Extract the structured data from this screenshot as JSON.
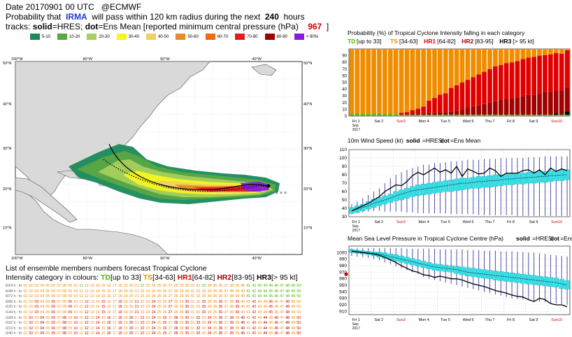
{
  "header": {
    "line1_date": "Date 20170901 00 UTC",
    "line1_org": "@ECMWF",
    "line2_pre": "Probability that",
    "storm": "IRMA",
    "line2_mid": "will pass within 120 km radius during the next",
    "hours": "240",
    "line2_post": "hours",
    "line3_pre": "tracks:",
    "solid": "solid",
    "line3_a": "=HRES;",
    "dot": "dot",
    "line3_b": "=Ens Mean [reported minimum central pressure (hPa)",
    "pressure": "967",
    "line3_end": "]"
  },
  "prob_legend": [
    {
      "label": "5-10",
      "color": "#1a8a5a"
    },
    {
      "label": "10-20",
      "color": "#5aa845"
    },
    {
      "label": "20-30",
      "color": "#a6cf5c"
    },
    {
      "label": "30-40",
      "color": "#f5f51f"
    },
    {
      "label": "40-50",
      "color": "#f0d060"
    },
    {
      "label": "50-60",
      "color": "#e88b2a"
    },
    {
      "label": "60-70",
      "color": "#f06a10"
    },
    {
      "label": "70-80",
      "color": "#e41a1c"
    },
    {
      "label": "80-90",
      "color": "#a00000"
    },
    {
      "label": "> 90%",
      "color": "#8a1ae0"
    }
  ],
  "map": {
    "top_lon_labels": [
      "100°W",
      "80°W",
      "60°W",
      "40°W"
    ],
    "bottom_lon_labels": [
      "100°W",
      "80°W",
      "60°W",
      "40°W"
    ],
    "lat_labels_left": [
      "50°N",
      "40°N",
      "30°N",
      "20°N",
      "10°N"
    ],
    "lat_labels_right": [
      "50°N",
      "40°N",
      "30°N",
      "20°N",
      "10°N"
    ]
  },
  "members": {
    "title": "List of ensemble members numbers forecast Tropical Cyclone",
    "intensity_label": "Intensity category in colours:",
    "categories": [
      {
        "code": "TD",
        "range": "[up to 33]",
        "color": "#49b800"
      },
      {
        "code": "TS",
        "range": "[34-63]",
        "color": "#f08c00"
      },
      {
        "code": "HR1",
        "range": "[64-82]",
        "color": "#e00000"
      },
      {
        "code": "HR2",
        "range": "[83-95]",
        "color": "#a00000"
      },
      {
        "code": "HR3",
        "range": "[> 95 kt]",
        "color": "#000000"
      }
    ],
    "row_labels": [
      "t024 h",
      "t048 h",
      "t072 h",
      "t096 h",
      "t120 h",
      "t144 h",
      "t168 h",
      "t192 h",
      "t216 h",
      "t240 h"
    ],
    "hr_label": "hr"
  },
  "chart_data": [
    {
      "type": "bar",
      "title": "Probability (%) of Tropical Cyclone Intensity falling in each category",
      "legend": [
        {
          "code": "TD",
          "range": "[up to 33]",
          "color": "#49b800"
        },
        {
          "code": "TS",
          "range": "[34-63]",
          "color": "#f08c00"
        },
        {
          "code": "HR1",
          "range": "[64-82]",
          "color": "#e00000"
        },
        {
          "code": "HR2",
          "range": "[83-95]",
          "color": "#a00000"
        },
        {
          "code": "HR3",
          "range": "[> 95 kt]",
          "color": "#000000"
        }
      ],
      "ylim": [
        0,
        100
      ],
      "yticks": [
        0,
        10,
        20,
        30,
        40,
        50,
        60,
        70,
        80,
        90
      ],
      "x_labels": [
        {
          "day": "Fri 1",
          "sub": "Sep",
          "sub2": "2017",
          "weekend": false
        },
        {
          "day": "Sat 2",
          "weekend": false
        },
        {
          "day": "Sun3",
          "weekend": true
        },
        {
          "day": "Mon 4",
          "weekend": false
        },
        {
          "day": "Tue 5",
          "weekend": false
        },
        {
          "day": "Wed 6",
          "weekend": false
        },
        {
          "day": "Thu 7",
          "weekend": false
        },
        {
          "day": "Fri 8",
          "weekend": false
        },
        {
          "day": "Sat 9",
          "weekend": false
        },
        {
          "day": "Sun10",
          "weekend": true
        }
      ],
      "steps_per_day": 4,
      "series": [
        {
          "name": "TD",
          "values": [
            3,
            3,
            3,
            3,
            3,
            3,
            3,
            3,
            2,
            2,
            2,
            2,
            2,
            2,
            2,
            2,
            2,
            2,
            2,
            2,
            2,
            2,
            2,
            2,
            2,
            2,
            2,
            2,
            2,
            2,
            2,
            2,
            2,
            2,
            2,
            2,
            2,
            2,
            2,
            2
          ]
        },
        {
          "name": "HR3",
          "values": [
            0,
            0,
            0,
            0,
            0,
            0,
            0,
            0,
            0,
            0,
            0,
            0,
            0,
            0,
            0,
            0,
            0,
            0,
            0,
            0,
            0,
            0,
            0,
            0,
            0,
            0,
            0,
            0,
            0,
            0,
            0,
            0,
            0,
            0,
            0,
            0,
            0,
            2,
            0,
            5
          ]
        },
        {
          "name": "HR2",
          "values": [
            0,
            0,
            0,
            0,
            0,
            0,
            0,
            0,
            0,
            0,
            0,
            2,
            2,
            2,
            3,
            3,
            4,
            4,
            5,
            6,
            8,
            10,
            12,
            14,
            16,
            18,
            20,
            22,
            23,
            24,
            26,
            28,
            30,
            30,
            32,
            34,
            34,
            34,
            36,
            36
          ]
        },
        {
          "name": "HR1",
          "values": [
            0,
            0,
            0,
            0,
            0,
            0,
            0,
            0,
            0,
            3,
            4,
            5,
            7,
            10,
            18,
            22,
            26,
            28,
            35,
            38,
            40,
            42,
            44,
            46,
            48,
            50,
            52,
            52,
            54,
            54,
            54,
            55,
            55,
            56,
            56,
            55,
            56,
            56,
            55,
            55
          ]
        },
        {
          "name": "TS",
          "values": [
            97,
            97,
            97,
            97,
            97,
            97,
            97,
            97,
            98,
            95,
            94,
            91,
            89,
            86,
            77,
            73,
            68,
            66,
            58,
            54,
            50,
            46,
            42,
            38,
            34,
            30,
            26,
            24,
            21,
            20,
            18,
            15,
            13,
            12,
            10,
            9,
            8,
            6,
            7,
            2
          ]
        }
      ]
    },
    {
      "type": "line",
      "title": "10m Wind Speed (kt)",
      "subtitle_solid": "solid",
      "subtitle_a": "=HRES;",
      "subtitle_dot": "dot",
      "subtitle_b": "=Ens Mean",
      "ylim": [
        30,
        110
      ],
      "yticks": [
        30,
        40,
        50,
        60,
        70,
        80,
        90,
        100,
        110
      ],
      "hres": [
        37,
        40,
        43,
        46,
        50,
        54,
        60,
        64,
        68,
        67,
        72,
        79,
        83,
        80,
        84,
        88,
        83,
        86,
        82,
        90,
        78,
        87,
        84,
        81,
        82,
        88,
        85,
        78,
        82,
        82,
        82,
        85,
        86,
        82,
        86,
        80,
        88,
        84,
        87,
        85
      ],
      "ens_mean": [
        37,
        39,
        41,
        43,
        46,
        48,
        50,
        52,
        55,
        57,
        59,
        61,
        62,
        63,
        64,
        65,
        66,
        67,
        68,
        69,
        70,
        70,
        71,
        72,
        72,
        73,
        73,
        74,
        75,
        75,
        76,
        76,
        77,
        77,
        78,
        78,
        79,
        79,
        80,
        80
      ],
      "box_lo": [
        34,
        35,
        37,
        39,
        41,
        43,
        45,
        47,
        49,
        50,
        52,
        54,
        55,
        56,
        57,
        58,
        59,
        60,
        60,
        61,
        62,
        63,
        64,
        64,
        65,
        65,
        66,
        67,
        68,
        68,
        69,
        69,
        70,
        70,
        71,
        71,
        72,
        73,
        73,
        74
      ],
      "box_hi": [
        41,
        43,
        45,
        48,
        51,
        53,
        55,
        57,
        60,
        62,
        64,
        66,
        68,
        69,
        70,
        71,
        72,
        73,
        74,
        75,
        76,
        76,
        77,
        78,
        78,
        79,
        80,
        80,
        81,
        81,
        82,
        82,
        83,
        83,
        84,
        84,
        85,
        85,
        86,
        86
      ],
      "wh_lo": [
        33,
        34,
        35,
        36,
        37,
        37,
        36,
        36,
        36,
        36,
        35,
        35,
        34,
        34,
        34,
        34,
        34,
        34,
        33,
        33,
        33,
        33,
        33,
        32,
        32,
        32,
        32,
        32,
        32,
        32,
        31,
        31,
        31,
        31,
        31,
        31,
        31,
        31,
        31,
        31
      ],
      "wh_hi": [
        45,
        48,
        52,
        56,
        60,
        64,
        70,
        76,
        80,
        83,
        86,
        88,
        90,
        92,
        92,
        94,
        94,
        95,
        96,
        96,
        97,
        98,
        98,
        98,
        99,
        99,
        99,
        100,
        100,
        100,
        100,
        100,
        101,
        101,
        101,
        102,
        102,
        102,
        102,
        102
      ]
    },
    {
      "type": "line",
      "title": "Mean Sea Level Pressure in Tropical Cyclone Centre (hPa)",
      "subtitle_solid": "solid",
      "subtitle_a": "=HRES;",
      "subtitle_dot": "dot",
      "subtitle_b": "=Ens Mean",
      "ylim": [
        905,
        1010
      ],
      "yticks": [
        910,
        920,
        930,
        940,
        950,
        960,
        970,
        980,
        990,
        1000
      ],
      "observed": 967,
      "hres": [
        1002,
        1001,
        1000,
        999,
        998,
        996,
        993,
        989,
        985,
        980,
        976,
        972,
        970,
        966,
        965,
        962,
        964,
        962,
        960,
        960,
        958,
        955,
        952,
        950,
        948,
        945,
        942,
        940,
        938,
        935,
        933,
        932,
        928,
        925,
        930,
        928,
        922,
        920,
        920,
        917
      ],
      "ens_mean": [
        1003,
        1002,
        1001,
        1000,
        999,
        998,
        996,
        994,
        992,
        990,
        988,
        986,
        984,
        982,
        980,
        978,
        977,
        976,
        975,
        974,
        972,
        970,
        969,
        968,
        967,
        966,
        965,
        964,
        963,
        962,
        961,
        960,
        959,
        958,
        957,
        956,
        955,
        954,
        952,
        950
      ],
      "box_lo": [
        1000,
        999,
        998,
        997,
        995,
        993,
        991,
        989,
        987,
        985,
        983,
        981,
        979,
        977,
        975,
        973,
        972,
        971,
        970,
        968,
        966,
        964,
        963,
        962,
        961,
        960,
        958,
        957,
        956,
        955,
        954,
        953,
        952,
        951,
        950,
        949,
        948,
        947,
        945,
        944
      ],
      "box_hi": [
        1005,
        1004,
        1003,
        1002,
        1001,
        1001,
        1000,
        998,
        997,
        995,
        993,
        991,
        989,
        987,
        985,
        983,
        982,
        981,
        980,
        979,
        978,
        977,
        976,
        975,
        974,
        973,
        972,
        971,
        970,
        969,
        968,
        967,
        966,
        965,
        964,
        963,
        962,
        961,
        959,
        957
      ],
      "wh_lo": [
        995,
        994,
        993,
        992,
        990,
        988,
        985,
        982,
        979,
        976,
        973,
        970,
        967,
        963,
        960,
        958,
        956,
        954,
        952,
        950,
        948,
        946,
        944,
        942,
        940,
        938,
        936,
        934,
        932,
        930,
        929,
        928,
        927,
        926,
        925,
        924,
        923,
        922,
        921,
        920
      ],
      "wh_hi": [
        1007,
        1007,
        1007,
        1007,
        1007,
        1007,
        1007,
        1007,
        1007,
        1007,
        1006,
        1006,
        1006,
        1006,
        1006,
        1006,
        1005,
        1005,
        1005,
        1005,
        1005,
        1004,
        1004,
        1004,
        1003,
        1003,
        1003,
        1002,
        1002,
        1002,
        1001,
        1001,
        1000,
        1000,
        999,
        998,
        997,
        996,
        995,
        994
      ]
    }
  ]
}
